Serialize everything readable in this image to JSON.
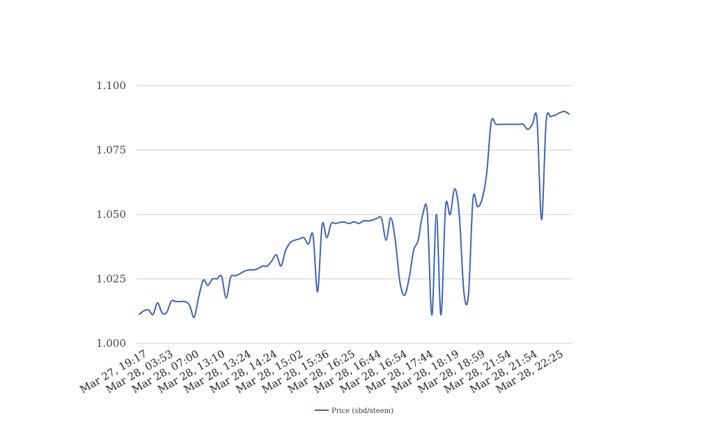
{
  "chart_data": {
    "type": "line",
    "ylim": [
      1.0,
      1.1
    ],
    "y_ticks": [
      "1.000",
      "1.025",
      "1.050",
      "1.075",
      "1.100"
    ],
    "x_ticks": [
      "Mar 27, 19:17",
      "Mar 28, 03:53",
      "Mar 28, 07:00",
      "Mar 28, 13:10",
      "Mar 28, 13:24",
      "Mar 28, 14:24",
      "Mar 28, 15:02",
      "Mar 28, 15:36",
      "Mar 28, 16:25",
      "Mar 28, 16:44",
      "Mar 28, 16:54",
      "Mar 28, 17:44",
      "Mar 28, 18:19",
      "Mar 28, 18:59",
      "Mar 28, 21:54",
      "Mar 28, 21:54",
      "Mar 28, 22:25"
    ],
    "grid": true,
    "legend_position": "bottom",
    "colors": {
      "line": "#3c64b6",
      "grid": "#cccccc"
    },
    "series": [
      {
        "name": "Price (sbd/steem)",
        "values": [
          1.0113,
          1.0126,
          1.013,
          1.0112,
          1.0157,
          1.0118,
          1.012,
          1.0164,
          1.0162,
          1.0162,
          1.0162,
          1.0148,
          1.0101,
          1.018,
          1.0245,
          1.0225,
          1.025,
          1.025,
          1.026,
          1.0176,
          1.0257,
          1.0262,
          1.027,
          1.028,
          1.0285,
          1.0285,
          1.029,
          1.03,
          1.03,
          1.032,
          1.0343,
          1.03,
          1.036,
          1.039,
          1.04,
          1.0405,
          1.041,
          1.0385,
          1.042,
          1.02,
          1.046,
          1.041,
          1.0465,
          1.0465,
          1.047,
          1.047,
          1.0465,
          1.0472,
          1.0465,
          1.0475,
          1.0475,
          1.0478,
          1.0485,
          1.0485,
          1.04,
          1.0487,
          1.04,
          1.024,
          1.0186,
          1.025,
          1.036,
          1.04,
          1.05,
          1.051,
          1.011,
          1.05,
          1.011,
          1.053,
          1.05,
          1.06,
          1.05,
          1.02,
          1.0186,
          1.056,
          1.053,
          1.056,
          1.066,
          1.086,
          1.085,
          1.085,
          1.085,
          1.085,
          1.085,
          1.085,
          1.085,
          1.083,
          1.085,
          1.087,
          1.048,
          1.086,
          1.088,
          1.0885,
          1.0895,
          1.09,
          1.089
        ]
      }
    ]
  }
}
